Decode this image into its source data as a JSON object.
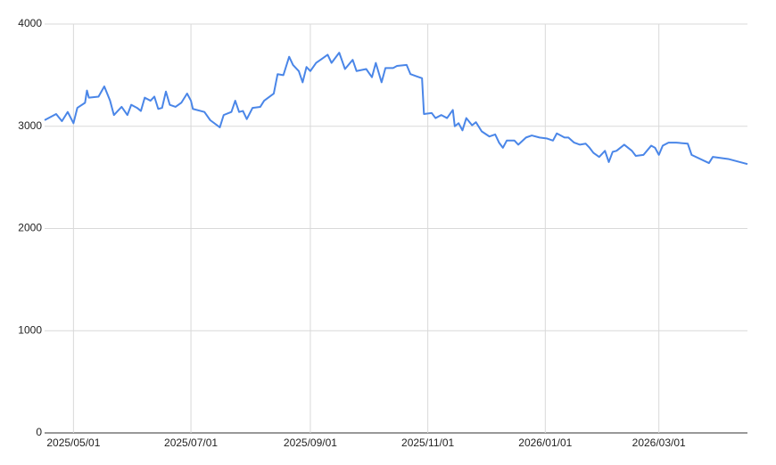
{
  "chart_data": {
    "type": "line",
    "color": "#4a86e8",
    "grid": true,
    "x": [
      "2025-04-16",
      "2025-04-22",
      "2025-04-25",
      "2025-04-28",
      "2025-05-01",
      "2025-05-03",
      "2025-05-07",
      "2025-05-08",
      "2025-05-09",
      "2025-05-14",
      "2025-05-17",
      "2025-05-20",
      "2025-05-22",
      "2025-05-26",
      "2025-05-29",
      "2025-05-31",
      "2025-06-03",
      "2025-06-05",
      "2025-06-07",
      "2025-06-10",
      "2025-06-12",
      "2025-06-14",
      "2025-06-16",
      "2025-06-18",
      "2025-06-20",
      "2025-06-23",
      "2025-06-26",
      "2025-06-29",
      "2025-07-01",
      "2025-07-02",
      "2025-07-08",
      "2025-07-11",
      "2025-07-16",
      "2025-07-18",
      "2025-07-22",
      "2025-07-24",
      "2025-07-26",
      "2025-07-28",
      "2025-07-30",
      "2025-08-02",
      "2025-08-06",
      "2025-08-08",
      "2025-08-13",
      "2025-08-15",
      "2025-08-18",
      "2025-08-21",
      "2025-08-23",
      "2025-08-26",
      "2025-08-28",
      "2025-08-30",
      "2025-09-01",
      "2025-09-04",
      "2025-09-07",
      "2025-09-10",
      "2025-09-12",
      "2025-09-16",
      "2025-09-19",
      "2025-09-23",
      "2025-09-25",
      "2025-09-30",
      "2025-10-03",
      "2025-10-05",
      "2025-10-08",
      "2025-10-10",
      "2025-10-14",
      "2025-10-16",
      "2025-10-21",
      "2025-10-23",
      "2025-10-26",
      "2025-10-29",
      "2025-10-30",
      "2025-11-03",
      "2025-11-05",
      "2025-11-08",
      "2025-11-11",
      "2025-11-14",
      "2025-11-15",
      "2025-11-17",
      "2025-11-19",
      "2025-11-21",
      "2025-11-24",
      "2025-11-26",
      "2025-11-29",
      "2025-12-03",
      "2025-12-06",
      "2025-12-08",
      "2025-12-10",
      "2025-12-12",
      "2025-12-16",
      "2025-12-18",
      "2025-12-22",
      "2025-12-25",
      "2025-12-29",
      "2026-01-02",
      "2026-01-05",
      "2026-01-07",
      "2026-01-11",
      "2026-01-13",
      "2026-01-16",
      "2026-01-19",
      "2026-01-22",
      "2026-01-24",
      "2026-01-26",
      "2026-01-29",
      "2026-02-01",
      "2026-02-03",
      "2026-02-05",
      "2026-02-07",
      "2026-02-11",
      "2026-02-15",
      "2026-02-17",
      "2026-02-21",
      "2026-02-25",
      "2026-02-27",
      "2026-03-01",
      "2026-03-03",
      "2026-03-06",
      "2026-03-10",
      "2026-03-16",
      "2026-03-18",
      "2026-03-27",
      "2026-03-29",
      "2026-04-06",
      "2026-04-16"
    ],
    "values": [
      3060,
      3120,
      3050,
      3140,
      3030,
      3180,
      3230,
      3350,
      3280,
      3290,
      3390,
      3250,
      3110,
      3190,
      3110,
      3210,
      3180,
      3150,
      3280,
      3250,
      3290,
      3170,
      3180,
      3340,
      3210,
      3190,
      3230,
      3320,
      3250,
      3170,
      3140,
      3060,
      2990,
      3110,
      3140,
      3250,
      3140,
      3150,
      3070,
      3180,
      3190,
      3250,
      3320,
      3510,
      3500,
      3680,
      3600,
      3540,
      3430,
      3580,
      3540,
      3620,
      3660,
      3700,
      3620,
      3720,
      3560,
      3650,
      3540,
      3560,
      3480,
      3620,
      3430,
      3570,
      3570,
      3590,
      3600,
      3510,
      3490,
      3470,
      3120,
      3130,
      3080,
      3110,
      3080,
      3160,
      3000,
      3030,
      2960,
      3080,
      3010,
      3040,
      2950,
      2900,
      2920,
      2840,
      2790,
      2860,
      2860,
      2820,
      2890,
      2910,
      2890,
      2880,
      2860,
      2930,
      2890,
      2890,
      2840,
      2820,
      2830,
      2790,
      2740,
      2700,
      2760,
      2650,
      2750,
      2760,
      2820,
      2760,
      2710,
      2720,
      2810,
      2790,
      2720,
      2810,
      2840,
      2840,
      2830,
      2720,
      2640,
      2700,
      2680,
      2630
    ],
    "xlim": [
      "2025-04-16",
      "2026-04-16"
    ],
    "xticks": [
      {
        "value": "2025-05-01",
        "label": "2025/05/01"
      },
      {
        "value": "2025-07-01",
        "label": "2025/07/01"
      },
      {
        "value": "2025-09-01",
        "label": "2025/09/01"
      },
      {
        "value": "2025-11-01",
        "label": "2025/11/01"
      },
      {
        "value": "2026-01-01",
        "label": "2026/01/01"
      },
      {
        "value": "2026-03-01",
        "label": "2026/03/01"
      }
    ],
    "ylim": [
      0,
      4000
    ],
    "yticks": [
      0,
      1000,
      2000,
      3000,
      4000
    ]
  }
}
